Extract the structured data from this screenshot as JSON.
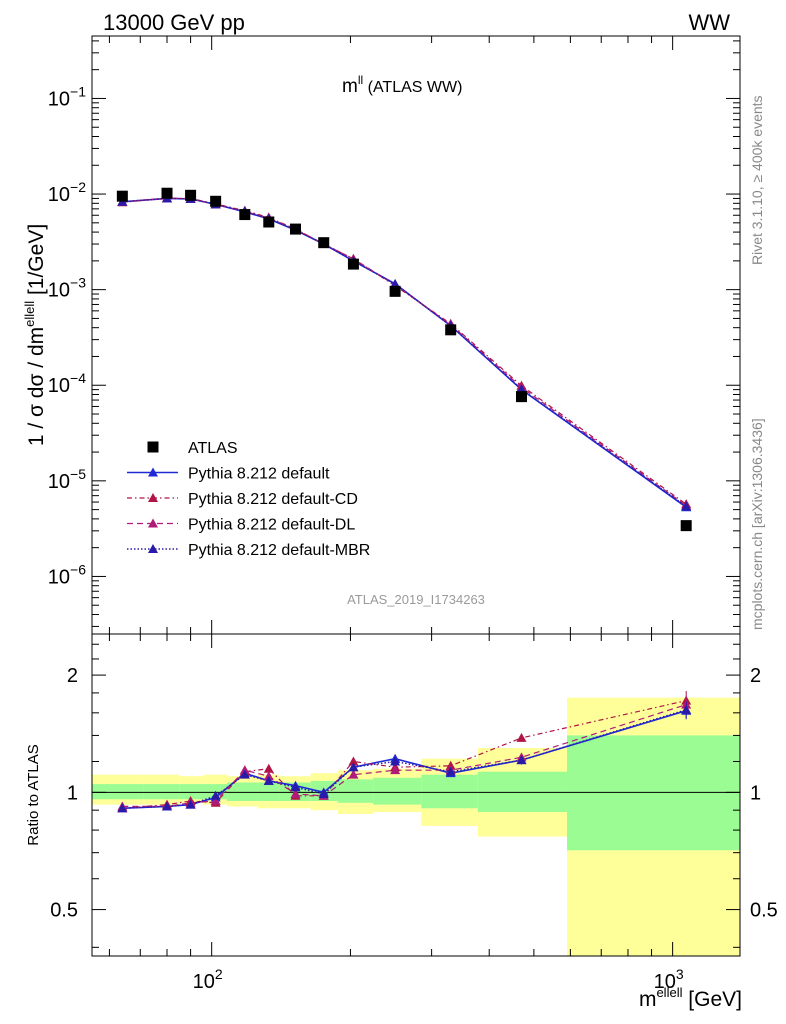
{
  "header": {
    "left": "13000 GeV pp",
    "right": "WW"
  },
  "side_labels": {
    "rivet": "Rivet 3.1.10, ≥ 400k events",
    "mcplots": "mcplots.cern.ch [arXiv:1306.3436]"
  },
  "chart_data": {
    "type": "scatter",
    "title": "m",
    "title_sup": "ll",
    "title_tail": " (ATLAS WW)",
    "watermark": "ATLAS_2019_I1734263",
    "xlabel": "m",
    "xlabel_sup": "ellell",
    "xlabel_unit": " [GeV]",
    "xscale": "log",
    "xlim": [
      55,
      1400
    ],
    "x_tick_labels": [
      {
        "base": "10",
        "exp": "2",
        "value": 100
      },
      {
        "base": "10",
        "exp": "3",
        "value": 1000
      }
    ],
    "upper": {
      "yscale": "log",
      "ylim": [
        2.5e-07,
        0.45
      ],
      "ylabel_parts": [
        "1 / σ  dσ / dm",
        "ellell",
        " [1/GeV]"
      ],
      "y_tick_labels": [
        {
          "base": "10",
          "exp": "−1",
          "value": 0.1
        },
        {
          "base": "10",
          "exp": "−2",
          "value": 0.01
        },
        {
          "base": "10",
          "exp": "−3",
          "value": 0.001
        },
        {
          "base": "10",
          "exp": "−4",
          "value": 0.0001
        },
        {
          "base": "10",
          "exp": "−5",
          "value": 1e-05
        },
        {
          "base": "10",
          "exp": "−6",
          "value": 1e-06
        }
      ],
      "data": {
        "name": "ATLAS",
        "x": [
          64,
          80,
          90,
          102,
          118,
          133,
          152,
          175,
          203,
          250,
          330,
          470,
          1070
        ],
        "y": [
          0.0095,
          0.0102,
          0.0097,
          0.0084,
          0.0061,
          0.0051,
          0.0043,
          0.0031,
          0.00185,
          0.00096,
          0.00038,
          7.6e-05,
          3.4e-06
        ]
      },
      "series": [
        {
          "name": "Pythia 8.212 default",
          "color": "#1f2ad6",
          "dash": "",
          "width": 1.6,
          "y": [
            0.0083,
            0.009,
            0.0089,
            0.0078,
            0.0065,
            0.0055,
            0.0042,
            0.003,
            0.002,
            0.00115,
            0.00042,
            9e-05,
            5.3e-06
          ]
        },
        {
          "name": "Pythia 8.212 default-CD",
          "color": "#b01546",
          "dash": "5,3,1.5,3",
          "width": 1.2,
          "y": [
            0.0082,
            0.009,
            0.009,
            0.0079,
            0.0067,
            0.0057,
            0.0043,
            0.003,
            0.0021,
            0.0011,
            0.00044,
            9.9e-05,
            5.7e-06
          ]
        },
        {
          "name": "Pythia 8.212 default-DL",
          "color": "#b01a78",
          "dash": "6,4",
          "width": 1.2,
          "y": [
            0.0083,
            0.0091,
            0.0089,
            0.0078,
            0.0066,
            0.0056,
            0.0043,
            0.003,
            0.0021,
            0.00112,
            0.00043,
            9.5e-05,
            5.5e-06
          ]
        },
        {
          "name": "Pythia 8.212 default-MBR",
          "color": "#2a1aa8",
          "dash": "1.5,2",
          "width": 1.4,
          "y": [
            0.0083,
            0.009,
            0.0089,
            0.0078,
            0.0066,
            0.0055,
            0.0042,
            0.003,
            0.002,
            0.00114,
            0.00042,
            9.1e-05,
            5.4e-06
          ]
        }
      ]
    },
    "ratio": {
      "ylabel": "Ratio to ATLAS",
      "yscale": "log",
      "ylim": [
        0.38,
        2.55
      ],
      "y_tick_labels": [
        {
          "label": "2",
          "value": 2
        },
        {
          "label": "1",
          "value": 1
        },
        {
          "label": "0.5",
          "value": 0.5
        }
      ],
      "bands": {
        "edges": [
          55,
          71,
          85,
          96,
          108,
          126,
          140,
          164,
          188,
          224,
          285,
          378,
          590,
          1400
        ],
        "yellow": [
          [
            0.93,
            1.11
          ],
          [
            0.93,
            1.11
          ],
          [
            0.94,
            1.1
          ],
          [
            0.93,
            1.11
          ],
          [
            0.92,
            1.1
          ],
          [
            0.91,
            1.11
          ],
          [
            0.91,
            1.1
          ],
          [
            0.9,
            1.12
          ],
          [
            0.88,
            1.14
          ],
          [
            0.89,
            1.15
          ],
          [
            0.82,
            1.22
          ],
          [
            0.77,
            1.3
          ],
          [
            0.38,
            1.75
          ]
        ],
        "green": [
          [
            0.96,
            1.05
          ],
          [
            0.96,
            1.05
          ],
          [
            0.96,
            1.05
          ],
          [
            0.96,
            1.05
          ],
          [
            0.95,
            1.06
          ],
          [
            0.95,
            1.06
          ],
          [
            0.95,
            1.06
          ],
          [
            0.95,
            1.07
          ],
          [
            0.94,
            1.08
          ],
          [
            0.93,
            1.09
          ],
          [
            0.91,
            1.11
          ],
          [
            0.89,
            1.13
          ],
          [
            0.71,
            1.4
          ]
        ]
      },
      "series": [
        {
          "name": "Pythia 8.212 default",
          "y": [
            0.91,
            0.92,
            0.93,
            0.97,
            1.12,
            1.07,
            1.04,
            1.0,
            1.16,
            1.22,
            1.12,
            1.21,
            1.62
          ],
          "err": [
            0.02,
            0.02,
            0.02,
            0.02,
            0.02,
            0.02,
            0.02,
            0.02,
            0.02,
            0.02,
            0.02,
            0.03,
            0.08
          ]
        },
        {
          "name": "Pythia 8.212 default-CD",
          "y": [
            0.91,
            0.93,
            0.95,
            0.94,
            1.13,
            1.15,
            0.98,
            0.98,
            1.2,
            1.16,
            1.17,
            1.38,
            1.72
          ],
          "err": [
            0.02,
            0.02,
            0.02,
            0.02,
            0.02,
            0.02,
            0.02,
            0.02,
            0.02,
            0.02,
            0.02,
            0.03,
            0.1
          ]
        },
        {
          "name": "Pythia 8.212 default-DL",
          "y": [
            0.92,
            0.92,
            0.94,
            0.95,
            1.14,
            1.1,
            0.99,
            0.98,
            1.11,
            1.14,
            1.14,
            1.23,
            1.68
          ],
          "err": [
            0.02,
            0.02,
            0.02,
            0.02,
            0.02,
            0.02,
            0.02,
            0.02,
            0.02,
            0.02,
            0.02,
            0.03,
            0.09
          ]
        },
        {
          "name": "Pythia 8.212 default-MBR",
          "y": [
            0.91,
            0.92,
            0.93,
            0.98,
            1.11,
            1.07,
            1.03,
            0.99,
            1.16,
            1.2,
            1.13,
            1.21,
            1.63
          ],
          "err": [
            0.02,
            0.02,
            0.02,
            0.02,
            0.02,
            0.02,
            0.02,
            0.02,
            0.02,
            0.02,
            0.02,
            0.03,
            0.08
          ]
        }
      ]
    }
  }
}
